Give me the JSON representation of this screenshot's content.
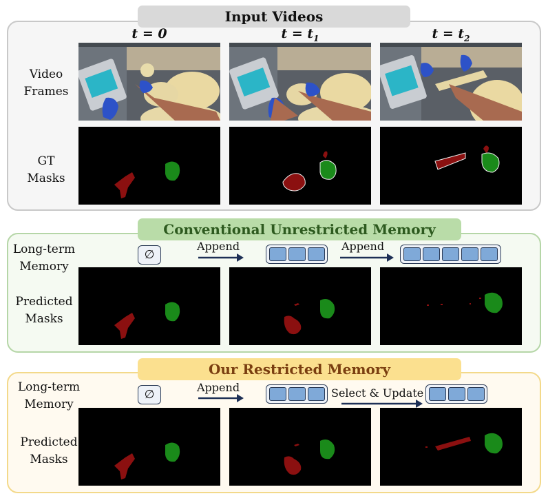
{
  "sections": {
    "input": {
      "title": "Input Videos"
    },
    "conventional": {
      "title": "Conventional Unrestricted Memory"
    },
    "ours": {
      "title": "Our Restricted Memory"
    }
  },
  "time_labels": {
    "t0": {
      "main": "t = 0",
      "sub": ""
    },
    "t1": {
      "main": "t = t",
      "sub": "1"
    },
    "t2": {
      "main": "t = t",
      "sub": "2"
    }
  },
  "row_labels": {
    "video_frames": [
      "Video",
      "Frames"
    ],
    "gt_masks": [
      "GT",
      "Masks"
    ],
    "long_term_memory": [
      "Long-term",
      "Memory"
    ],
    "predicted_masks": [
      "Predicted",
      "Masks"
    ]
  },
  "memory": {
    "empty_symbol": "∅",
    "conventional": {
      "slots": [
        0,
        3,
        5
      ],
      "arrows": [
        "Append",
        "Append"
      ]
    },
    "ours": {
      "slots": [
        0,
        3,
        3
      ],
      "arrows": [
        "Append",
        "Select & Update"
      ]
    }
  },
  "colors": {
    "mask_red": "#8b1010",
    "mask_green": "#1a8a1a",
    "input_panel_border": "#c8c8c8",
    "input_panel_bg": "#f6f6f6",
    "input_title_bg": "#d9d9d9",
    "conv_panel_border": "#b5d6a7",
    "conv_panel_bg": "#f5faf2",
    "conv_title_bg": "#b9dca8",
    "ours_panel_border": "#f3d98a",
    "ours_panel_bg": "#fffaf0",
    "ours_title_bg": "#fbe08f",
    "memory_slot": "#7fa9d8"
  }
}
